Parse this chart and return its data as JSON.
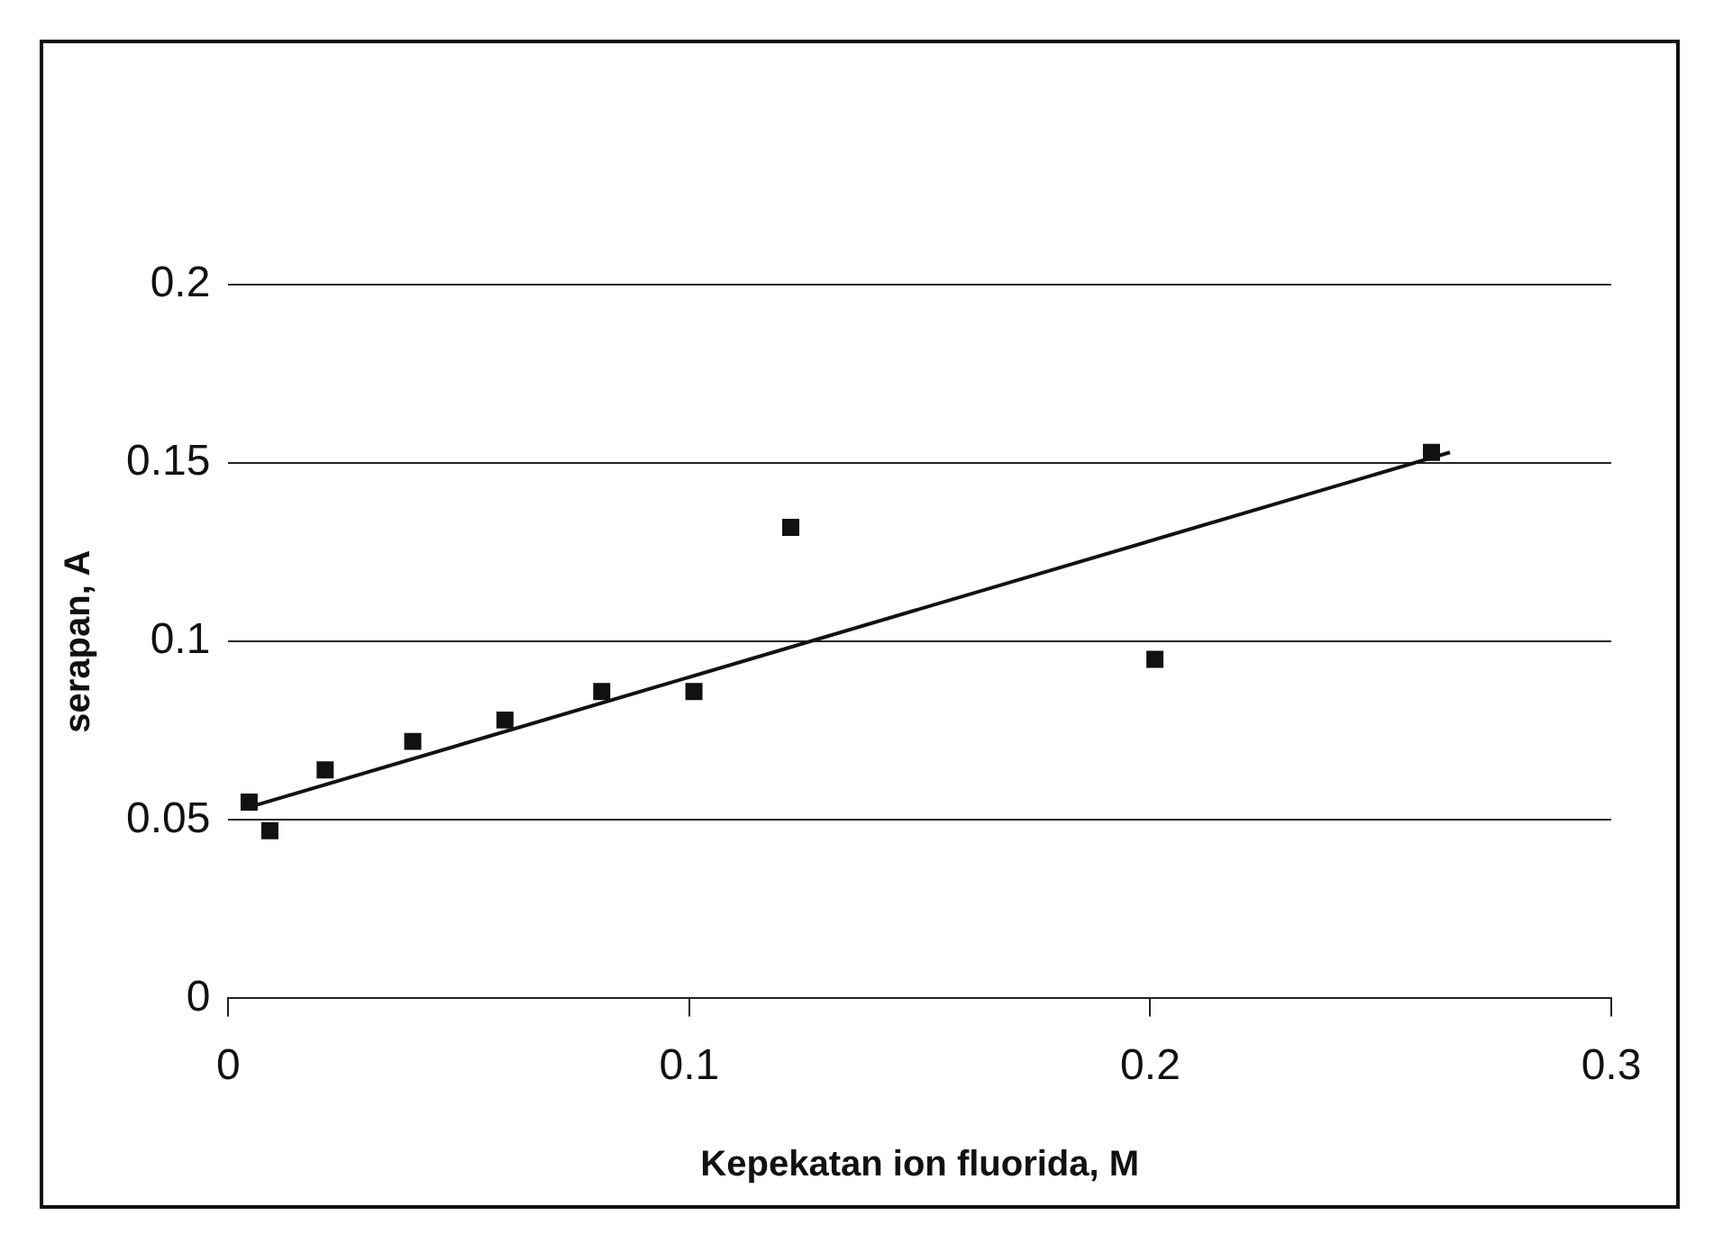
{
  "chart_data": {
    "type": "scatter",
    "xlabel": "Kepekatan ion fluorida, M",
    "ylabel": "serapan, A",
    "xlim": [
      0,
      0.3
    ],
    "xticks": [
      0,
      0.1,
      0.2,
      0.3
    ],
    "ylim": [
      0,
      0.2
    ],
    "yticks": [
      0,
      0.05,
      0.1,
      0.15,
      0.2
    ],
    "grid": "y",
    "legend": false,
    "marker": "square",
    "series": [
      {
        "type": "scatter",
        "color": "#111111",
        "x": [
          0.0045,
          0.009,
          0.021,
          0.04,
          0.06,
          0.081,
          0.101,
          0.122,
          0.201,
          0.261
        ],
        "values": [
          0.055,
          0.047,
          0.064,
          0.072,
          0.078,
          0.086,
          0.086,
          0.132,
          0.095,
          0.153
        ]
      },
      {
        "type": "line",
        "color": "#111111",
        "x": [
          0.003,
          0.265
        ],
        "values": [
          0.053,
          0.153
        ],
        "marker": "none",
        "line_style": "solid"
      }
    ]
  }
}
